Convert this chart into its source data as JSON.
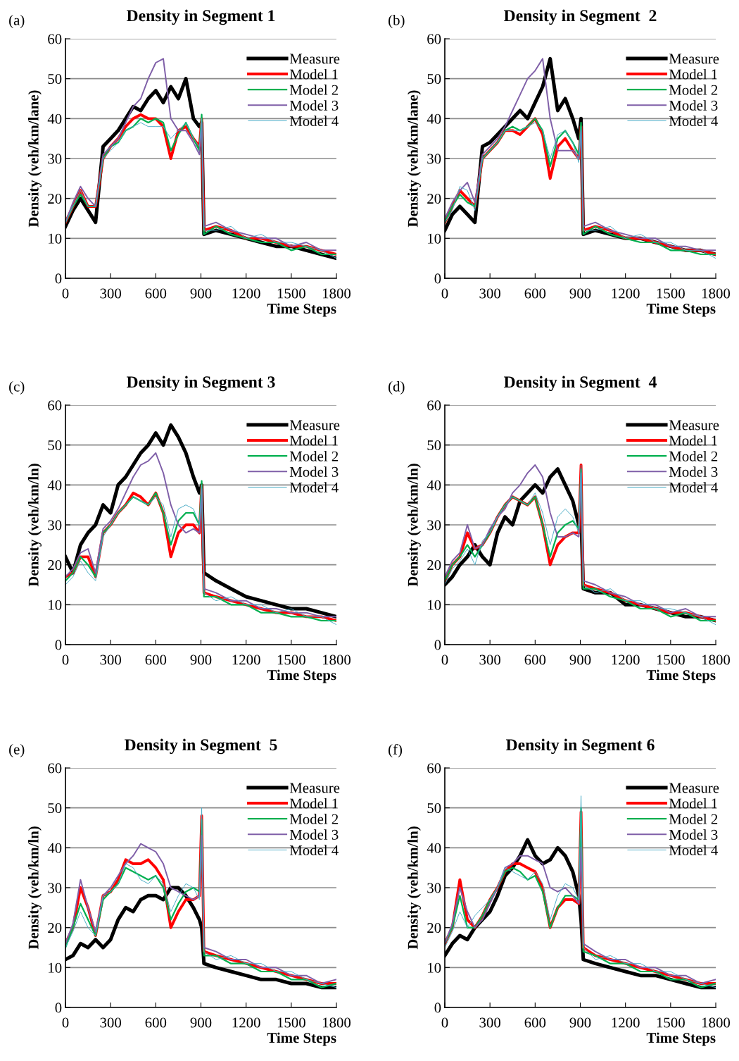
{
  "chart_data": [
    {
      "type": "line",
      "title": "Density in Segment 1",
      "annotations": [
        "(a)"
      ],
      "xlabel": "Time Steps",
      "ylabel": "Density (veh/km/lane)",
      "xlim": [
        0,
        1800
      ],
      "xticks": [
        0,
        300,
        600,
        900,
        1200,
        1500,
        1800
      ],
      "ylim": [
        0,
        60
      ],
      "yticks": [
        0,
        10,
        20,
        30,
        40,
        50,
        60
      ],
      "grid": "y",
      "legend": "top right",
      "marker": "none",
      "line_style": "solid",
      "x": [
        0,
        50,
        100,
        150,
        200,
        250,
        300,
        350,
        400,
        450,
        500,
        550,
        600,
        650,
        700,
        750,
        800,
        850,
        890,
        905,
        920,
        1000,
        1100,
        1200,
        1300,
        1400,
        1500,
        1600,
        1700,
        1800
      ],
      "series": [
        {
          "name": "Measure",
          "color": "#000000",
          "values": [
            13,
            17,
            20,
            17,
            14,
            33,
            35,
            37,
            40,
            43,
            42,
            45,
            47,
            44,
            48,
            45,
            50,
            40,
            38,
            39,
            11,
            12,
            11,
            10,
            9,
            8,
            8,
            7,
            6,
            5
          ]
        },
        {
          "name": "Model 1",
          "color": "#ff0000",
          "values": [
            14,
            18,
            22,
            18,
            18,
            30,
            33,
            35,
            38,
            40,
            41,
            40,
            40,
            38,
            30,
            37,
            38,
            35,
            33,
            40,
            12,
            13,
            12,
            10,
            10,
            9,
            8,
            8,
            7,
            6
          ]
        },
        {
          "name": "Model 2",
          "color": "#00b050",
          "values": [
            14,
            18,
            21,
            18,
            18,
            30,
            33,
            34,
            37,
            38,
            40,
            39,
            40,
            39,
            32,
            36,
            39,
            35,
            32,
            41,
            11,
            13,
            11,
            10,
            9,
            9,
            7,
            8,
            6,
            6
          ]
        },
        {
          "name": "Model 3",
          "color": "#7f5fa8",
          "values": [
            14,
            19,
            23,
            20,
            18,
            31,
            33,
            35,
            39,
            43,
            45,
            50,
            54,
            55,
            40,
            37,
            37,
            34,
            31,
            39,
            13,
            14,
            12,
            11,
            10,
            10,
            8,
            9,
            7,
            7
          ]
        },
        {
          "name": "Model 4",
          "color": "#4bacc6",
          "values": [
            14,
            18,
            22,
            18,
            18,
            30,
            32,
            34,
            37,
            38,
            39,
            38,
            38,
            38,
            35,
            37,
            39,
            35,
            33,
            40,
            12,
            12,
            13,
            10,
            11,
            9,
            9,
            8,
            7,
            5
          ]
        }
      ]
    },
    {
      "type": "line",
      "title": "Density in Segment  2",
      "annotations": [
        "(b)"
      ],
      "xlabel": "Time Steps",
      "ylabel": "Density (veh/km/lane)",
      "xlim": [
        0,
        1800
      ],
      "xticks": [
        0,
        300,
        600,
        900,
        1200,
        1500,
        1800
      ],
      "ylim": [
        0,
        60
      ],
      "yticks": [
        0,
        10,
        20,
        30,
        40,
        50,
        60
      ],
      "grid": "y",
      "legend": "top right",
      "marker": "none",
      "line_style": "solid",
      "x": [
        0,
        50,
        100,
        150,
        200,
        250,
        300,
        350,
        400,
        450,
        500,
        550,
        600,
        650,
        700,
        750,
        800,
        850,
        890,
        905,
        920,
        1000,
        1100,
        1200,
        1300,
        1400,
        1500,
        1600,
        1700,
        1800
      ],
      "series": [
        {
          "name": "Measure",
          "color": "#000000",
          "values": [
            12,
            16,
            18,
            16,
            14,
            33,
            34,
            36,
            38,
            40,
            42,
            40,
            44,
            48,
            55,
            42,
            45,
            40,
            35,
            40,
            11,
            12,
            11,
            10,
            10,
            9,
            8,
            7,
            7,
            6
          ]
        },
        {
          "name": "Model 1",
          "color": "#ff0000",
          "values": [
            14,
            18,
            22,
            20,
            18,
            30,
            32,
            34,
            37,
            37,
            36,
            38,
            40,
            36,
            25,
            33,
            35,
            32,
            30,
            38,
            12,
            13,
            12,
            10,
            10,
            9,
            8,
            7,
            7,
            6
          ]
        },
        {
          "name": "Model 2",
          "color": "#00b050",
          "values": [
            14,
            18,
            21,
            19,
            18,
            30,
            32,
            34,
            37,
            38,
            37,
            38,
            40,
            37,
            28,
            35,
            37,
            34,
            31,
            39,
            11,
            13,
            11,
            10,
            9,
            9,
            7,
            7,
            6,
            6
          ]
        },
        {
          "name": "Model 3",
          "color": "#7f5fa8",
          "values": [
            15,
            19,
            22,
            24,
            19,
            31,
            33,
            35,
            38,
            42,
            46,
            50,
            52,
            55,
            40,
            32,
            32,
            32,
            30,
            37,
            13,
            14,
            12,
            11,
            10,
            10,
            8,
            8,
            7,
            7
          ]
        },
        {
          "name": "Model 4",
          "color": "#4bacc6",
          "values": [
            14,
            17,
            23,
            22,
            17,
            30,
            32,
            34,
            37,
            37,
            37,
            38,
            39,
            37,
            30,
            36,
            37,
            34,
            29,
            38,
            12,
            12,
            13,
            10,
            11,
            9,
            9,
            7,
            7,
            5
          ]
        }
      ]
    },
    {
      "type": "line",
      "title": "Density in Segment 3",
      "annotations": [
        "(c)"
      ],
      "xlabel": "Time Steps",
      "ylabel": "Density (veh/km/ln)",
      "xlim": [
        0,
        1800
      ],
      "xticks": [
        0,
        300,
        600,
        900,
        1200,
        1500,
        1800
      ],
      "ylim": [
        0,
        60
      ],
      "yticks": [
        0,
        10,
        20,
        30,
        40,
        50,
        60
      ],
      "grid": "y",
      "legend": "top right",
      "marker": "none",
      "line_style": "solid",
      "x": [
        0,
        50,
        100,
        150,
        200,
        250,
        300,
        350,
        400,
        450,
        500,
        550,
        600,
        650,
        700,
        750,
        800,
        850,
        890,
        905,
        920,
        1000,
        1100,
        1200,
        1300,
        1400,
        1500,
        1600,
        1700,
        1800
      ],
      "series": [
        {
          "name": "Measure",
          "color": "#000000",
          "values": [
            22,
            18,
            25,
            28,
            30,
            35,
            33,
            40,
            42,
            45,
            48,
            50,
            53,
            50,
            55,
            52,
            48,
            42,
            38,
            40,
            18,
            16,
            14,
            12,
            11,
            10,
            9,
            9,
            8,
            7
          ]
        },
        {
          "name": "Model 1",
          "color": "#ff0000",
          "values": [
            17,
            18,
            22,
            22,
            17,
            28,
            30,
            33,
            35,
            38,
            37,
            35,
            38,
            33,
            22,
            28,
            30,
            30,
            28,
            40,
            13,
            12,
            11,
            10,
            9,
            8,
            8,
            7,
            7,
            6
          ]
        },
        {
          "name": "Model 2",
          "color": "#00b050",
          "values": [
            16,
            18,
            22,
            20,
            17,
            28,
            30,
            33,
            35,
            37,
            36,
            35,
            38,
            33,
            25,
            31,
            33,
            33,
            30,
            41,
            12,
            12,
            10,
            10,
            8,
            8,
            7,
            7,
            6,
            6
          ]
        },
        {
          "name": "Model 3",
          "color": "#7f5fa8",
          "values": [
            17,
            19,
            23,
            24,
            18,
            29,
            31,
            34,
            38,
            42,
            45,
            46,
            48,
            43,
            35,
            30,
            28,
            29,
            28,
            39,
            14,
            13,
            11,
            11,
            9,
            9,
            8,
            8,
            7,
            7
          ]
        },
        {
          "name": "Model 4",
          "color": "#4bacc6",
          "values": [
            15,
            17,
            21,
            18,
            16,
            27,
            30,
            33,
            35,
            37,
            36,
            35,
            37,
            35,
            27,
            34,
            35,
            34,
            30,
            40,
            13,
            11,
            12,
            10,
            10,
            8,
            9,
            7,
            7,
            5
          ]
        }
      ]
    },
    {
      "type": "line",
      "title": "Density in Segment  4",
      "annotations": [
        "(d)"
      ],
      "xlabel": "Time Steps",
      "ylabel": "Density (veh/km/ln)",
      "xlim": [
        0,
        1800
      ],
      "xticks": [
        0,
        300,
        600,
        900,
        1200,
        1500,
        1800
      ],
      "ylim": [
        0,
        60
      ],
      "yticks": [
        0,
        10,
        20,
        30,
        40,
        50,
        60
      ],
      "grid": "y",
      "legend": "top right",
      "marker": "none",
      "line_style": "solid",
      "x": [
        0,
        50,
        100,
        150,
        200,
        250,
        300,
        350,
        400,
        450,
        500,
        550,
        600,
        650,
        700,
        750,
        800,
        850,
        890,
        905,
        920,
        1000,
        1100,
        1200,
        1300,
        1400,
        1500,
        1600,
        1700,
        1800
      ],
      "series": [
        {
          "name": "Measure",
          "color": "#000000",
          "values": [
            15,
            17,
            20,
            22,
            25,
            22,
            20,
            28,
            32,
            30,
            36,
            38,
            40,
            38,
            42,
            44,
            40,
            36,
            30,
            32,
            14,
            13,
            13,
            10,
            10,
            9,
            8,
            7,
            7,
            6
          ]
        },
        {
          "name": "Model 1",
          "color": "#ff0000",
          "values": [
            16,
            20,
            22,
            28,
            24,
            25,
            28,
            32,
            35,
            37,
            36,
            35,
            37,
            30,
            20,
            25,
            27,
            28,
            28,
            45,
            15,
            14,
            13,
            11,
            10,
            9,
            8,
            8,
            7,
            6
          ]
        },
        {
          "name": "Model 2",
          "color": "#00b050",
          "values": [
            16,
            20,
            22,
            25,
            22,
            25,
            28,
            32,
            35,
            37,
            36,
            35,
            37,
            30,
            22,
            28,
            30,
            31,
            29,
            44,
            14,
            14,
            12,
            11,
            9,
            9,
            7,
            8,
            6,
            6
          ]
        },
        {
          "name": "Model 3",
          "color": "#7f5fa8",
          "values": [
            17,
            21,
            23,
            30,
            24,
            25,
            29,
            32,
            34,
            38,
            40,
            43,
            45,
            42,
            33,
            27,
            27,
            28,
            27,
            43,
            16,
            15,
            13,
            12,
            10,
            10,
            8,
            9,
            7,
            7
          ]
        },
        {
          "name": "Model 4",
          "color": "#4bacc6",
          "values": [
            15,
            19,
            21,
            24,
            20,
            26,
            28,
            32,
            35,
            37,
            36,
            35,
            38,
            33,
            25,
            32,
            34,
            32,
            28,
            45,
            15,
            13,
            14,
            11,
            11,
            9,
            9,
            8,
            7,
            5
          ]
        }
      ]
    },
    {
      "type": "line",
      "title": "Density in Segment  5",
      "annotations": [
        "(e)"
      ],
      "xlabel": "Time Steps",
      "ylabel": "Density (veh/km/ln)",
      "xlim": [
        0,
        1800
      ],
      "xticks": [
        0,
        300,
        600,
        900,
        1200,
        1500,
        1800
      ],
      "ylim": [
        0,
        60
      ],
      "yticks": [
        0,
        10,
        20,
        30,
        40,
        50,
        60
      ],
      "grid": "y",
      "legend": "top right",
      "marker": "none",
      "line_style": "solid",
      "x": [
        0,
        50,
        100,
        150,
        200,
        250,
        300,
        350,
        400,
        450,
        500,
        550,
        600,
        650,
        700,
        750,
        800,
        850,
        890,
        905,
        920,
        1000,
        1100,
        1200,
        1300,
        1400,
        1500,
        1600,
        1700,
        1800
      ],
      "series": [
        {
          "name": "Measure",
          "color": "#000000",
          "values": [
            12,
            13,
            16,
            15,
            17,
            15,
            17,
            22,
            25,
            24,
            27,
            28,
            28,
            27,
            30,
            30,
            28,
            25,
            22,
            20,
            11,
            10,
            9,
            8,
            7,
            7,
            6,
            6,
            5,
            5
          ]
        },
        {
          "name": "Model 1",
          "color": "#ff0000",
          "values": [
            16,
            20,
            30,
            25,
            18,
            28,
            29,
            32,
            37,
            36,
            36,
            37,
            35,
            32,
            20,
            24,
            27,
            27,
            28,
            48,
            14,
            13,
            12,
            11,
            10,
            9,
            8,
            7,
            6,
            6
          ]
        },
        {
          "name": "Model 2",
          "color": "#00b050",
          "values": [
            15,
            20,
            26,
            22,
            18,
            27,
            29,
            31,
            35,
            34,
            33,
            32,
            33,
            30,
            22,
            26,
            29,
            30,
            29,
            47,
            13,
            13,
            11,
            11,
            9,
            9,
            7,
            7,
            5,
            6
          ]
        },
        {
          "name": "Model 3",
          "color": "#7f5fa8",
          "values": [
            16,
            21,
            32,
            25,
            19,
            28,
            30,
            33,
            36,
            38,
            41,
            40,
            39,
            36,
            30,
            29,
            28,
            27,
            28,
            43,
            15,
            14,
            12,
            12,
            10,
            10,
            8,
            8,
            6,
            7
          ]
        },
        {
          "name": "Model 4",
          "color": "#4bacc6",
          "values": [
            15,
            19,
            24,
            20,
            18,
            28,
            29,
            31,
            36,
            35,
            32,
            31,
            33,
            31,
            24,
            28,
            31,
            30,
            27,
            50,
            14,
            12,
            13,
            11,
            11,
            9,
            9,
            7,
            6,
            5
          ]
        }
      ]
    },
    {
      "type": "line",
      "title": "Density in Segment 6",
      "annotations": [
        "(f)"
      ],
      "xlabel": "Time Steps",
      "ylabel": "Density (veh/km/ln)",
      "xlim": [
        0,
        1800
      ],
      "xticks": [
        0,
        300,
        600,
        900,
        1200,
        1500,
        1800
      ],
      "ylim": [
        0,
        60
      ],
      "yticks": [
        0,
        10,
        20,
        30,
        40,
        50,
        60
      ],
      "grid": "y",
      "legend": "top right",
      "marker": "none",
      "line_style": "solid",
      "x": [
        0,
        50,
        100,
        150,
        200,
        250,
        300,
        350,
        400,
        450,
        500,
        550,
        600,
        650,
        700,
        750,
        800,
        850,
        890,
        905,
        920,
        1000,
        1100,
        1200,
        1300,
        1400,
        1500,
        1600,
        1700,
        1800
      ],
      "series": [
        {
          "name": "Measure",
          "color": "#000000",
          "values": [
            13,
            16,
            18,
            17,
            20,
            22,
            24,
            28,
            33,
            35,
            38,
            42,
            38,
            36,
            37,
            40,
            38,
            34,
            28,
            22,
            12,
            11,
            10,
            9,
            8,
            8,
            7,
            6,
            5,
            5
          ]
        },
        {
          "name": "Model 1",
          "color": "#ff0000",
          "values": [
            16,
            20,
            32,
            22,
            20,
            23,
            27,
            30,
            34,
            36,
            36,
            35,
            34,
            30,
            20,
            25,
            27,
            27,
            26,
            49,
            15,
            13,
            12,
            11,
            10,
            9,
            8,
            7,
            6,
            6
          ]
        },
        {
          "name": "Model 2",
          "color": "#00b050",
          "values": [
            16,
            20,
            28,
            20,
            20,
            23,
            27,
            30,
            34,
            35,
            34,
            32,
            33,
            29,
            20,
            25,
            28,
            28,
            27,
            50,
            14,
            13,
            11,
            11,
            9,
            9,
            7,
            7,
            5,
            6
          ]
        },
        {
          "name": "Model 3",
          "color": "#7f5fa8",
          "values": [
            16,
            21,
            30,
            24,
            20,
            22,
            26,
            30,
            35,
            36,
            38,
            38,
            37,
            36,
            30,
            29,
            30,
            28,
            26,
            40,
            16,
            14,
            12,
            12,
            10,
            10,
            8,
            8,
            6,
            7
          ]
        },
        {
          "name": "Model 4",
          "color": "#4bacc6",
          "values": [
            15,
            19,
            24,
            20,
            23,
            25,
            27,
            30,
            35,
            34,
            33,
            32,
            34,
            31,
            22,
            28,
            31,
            30,
            27,
            53,
            15,
            12,
            13,
            11,
            11,
            9,
            9,
            7,
            6,
            5
          ]
        }
      ]
    }
  ]
}
